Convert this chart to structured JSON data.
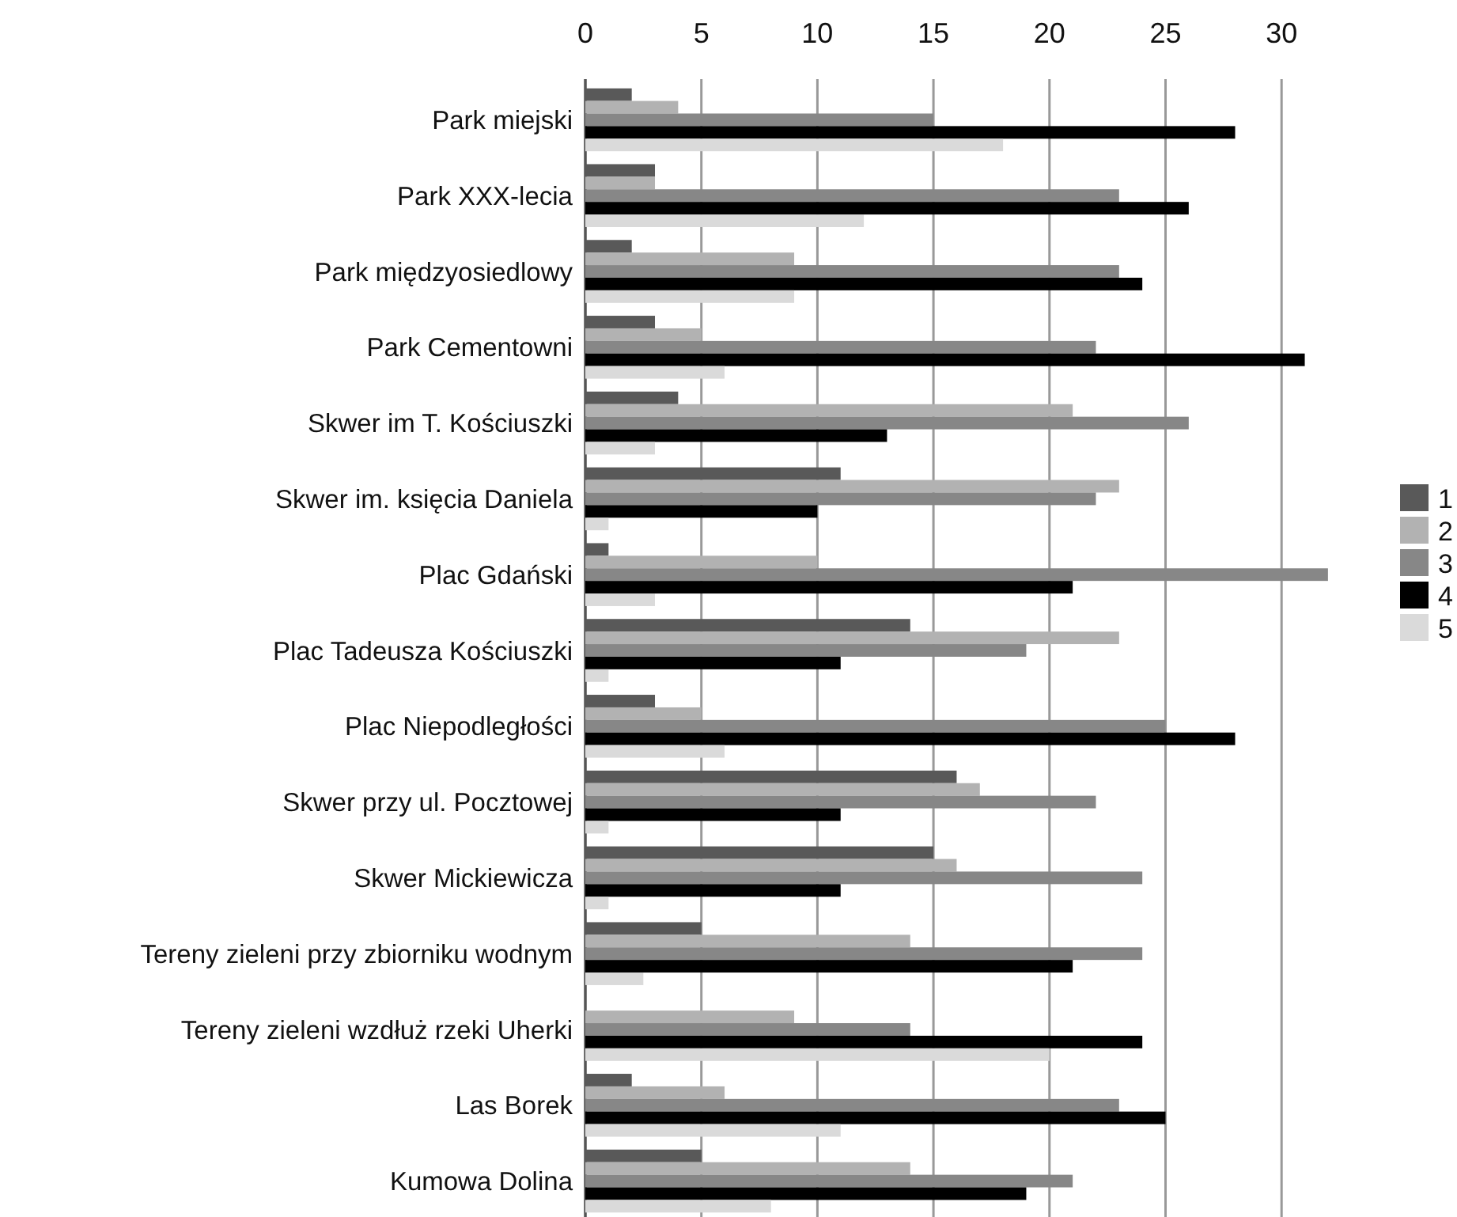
{
  "chart_data": {
    "type": "bar",
    "orientation": "horizontal",
    "categories": [
      "Park miejski",
      "Park XXX-lecia",
      "Park międzyosiedlowy",
      "Park Cementowni",
      "Skwer im T. Kościuszki",
      "Skwer im. księcia Daniela",
      "Plac Gdański",
      "Plac Tadeusza Kościuszki",
      "Plac Niepodległości",
      "Skwer przy ul. Pocztowej",
      "Skwer Mickiewicza",
      "Tereny zieleni przy zbiorniku wodnym",
      "Tereny zieleni wzdłuż rzeki Uherki",
      "Las Borek",
      "Kumowa Dolina"
    ],
    "series": [
      {
        "name": "1",
        "color": "#595959",
        "values": [
          2,
          3,
          2,
          3,
          4,
          11,
          1,
          14,
          3,
          16,
          15,
          5,
          0,
          2,
          5
        ]
      },
      {
        "name": "2",
        "color": "#b2b2b2",
        "values": [
          4,
          3,
          9,
          5,
          21,
          23,
          10,
          23,
          5,
          17,
          16,
          14,
          9,
          6,
          14
        ]
      },
      {
        "name": "3",
        "color": "#878787",
        "values": [
          15,
          23,
          23,
          22,
          26,
          22,
          32,
          19,
          25,
          22,
          24,
          24,
          14,
          23,
          21
        ]
      },
      {
        "name": "4",
        "color": "#000000",
        "values": [
          28,
          26,
          24,
          31,
          13,
          10,
          21,
          11,
          28,
          11,
          11,
          21,
          24,
          25,
          19
        ]
      },
      {
        "name": "5",
        "color": "#dadada",
        "values": [
          18,
          12,
          9,
          6,
          3,
          1,
          3,
          1,
          6,
          1,
          1,
          2.5,
          20,
          11,
          8
        ]
      }
    ],
    "xlim": [
      0,
      32
    ],
    "xticks": [
      0,
      5,
      10,
      15,
      20,
      25,
      30
    ],
    "grid": "x",
    "legend": "right"
  }
}
